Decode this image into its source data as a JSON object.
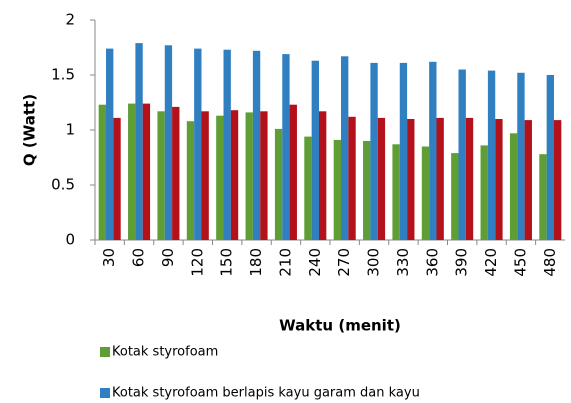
{
  "chart_data": {
    "type": "bar",
    "xlabel": "Waktu (menit)",
    "ylabel": "Q (Watt)",
    "categories": [
      "30",
      "60",
      "90",
      "120",
      "150",
      "180",
      "210",
      "240",
      "270",
      "300",
      "330",
      "360",
      "390",
      "420",
      "450",
      "480"
    ],
    "series": [
      {
        "name": "Kotak styrofoam",
        "color": "#5e9e34",
        "values": [
          1.23,
          1.24,
          1.17,
          1.08,
          1.13,
          1.16,
          1.01,
          0.94,
          0.91,
          0.9,
          0.87,
          0.85,
          0.79,
          0.86,
          0.97,
          0.78
        ]
      },
      {
        "name": "Kotak styrofoam berlapis kayu garam dan kayu",
        "color": "#2f7fc1",
        "values": [
          1.74,
          1.79,
          1.77,
          1.74,
          1.73,
          1.72,
          1.69,
          1.63,
          1.67,
          1.61,
          1.61,
          1.62,
          1.55,
          1.54,
          1.52,
          1.5
        ]
      },
      {
        "color": "#b3121a",
        "values": [
          1.11,
          1.24,
          1.21,
          1.17,
          1.18,
          1.17,
          1.23,
          1.17,
          1.12,
          1.11,
          1.1,
          1.11,
          1.11,
          1.1,
          1.09,
          1.09
        ]
      }
    ],
    "ylim": [
      0,
      2
    ],
    "yticks": [
      0,
      0.5,
      1,
      1.5,
      2
    ],
    "grid": false
  }
}
